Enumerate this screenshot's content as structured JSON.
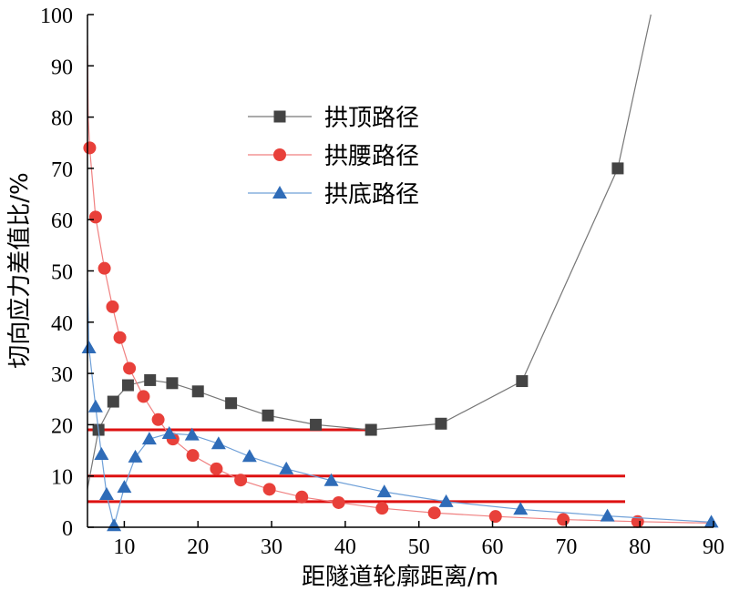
{
  "chart_data": {
    "type": "line",
    "xlabel": "距隧道轮廓距离/m",
    "ylabel": "切向应力差值比/%",
    "xlim": [
      5,
      90
    ],
    "ylim": [
      0,
      100
    ],
    "xticks": [
      10,
      20,
      30,
      40,
      50,
      60,
      70,
      80,
      90
    ],
    "yticks": [
      0,
      10,
      20,
      30,
      40,
      50,
      60,
      70,
      80,
      90,
      100
    ],
    "grid": false,
    "legend_position": "top-center",
    "series": [
      {
        "name": "拱顶路径",
        "color": "#777777",
        "marker": "square",
        "marker_color": "#444444",
        "x": [
          5,
          6.5,
          8.5,
          10.5,
          13.5,
          16.5,
          20,
          24.5,
          29.5,
          36,
          43.5,
          53,
          64,
          77,
          81.5
        ],
        "y": [
          7.5,
          19,
          24.5,
          27.7,
          28.7,
          28.1,
          26.5,
          24.2,
          21.8,
          20,
          19,
          20.2,
          28.5,
          70,
          100
        ],
        "marker_start": 1,
        "marker_end": 13
      },
      {
        "name": "拱腰路径",
        "color": "#f08080",
        "marker": "circle",
        "marker_color": "#e8403a",
        "x": [
          5,
          5.1,
          5.3,
          6.1,
          7.3,
          8.4,
          9.4,
          10.7,
          12.6,
          14.6,
          16.6,
          19.3,
          22.5,
          25.8,
          29.7,
          34.1,
          39.1,
          45,
          52.1,
          60.4,
          69.6,
          79.7,
          90
        ],
        "y": [
          94,
          80,
          74,
          60.5,
          50.5,
          43,
          37,
          31,
          25.5,
          21,
          17.2,
          14,
          11.4,
          9.2,
          7.4,
          5.9,
          4.8,
          3.7,
          2.8,
          2.1,
          1.5,
          1.1,
          0.8
        ],
        "marker_start": 2,
        "marker_end": 21
      },
      {
        "name": "拱底路径",
        "color": "#6fa0d8",
        "marker": "triangle",
        "marker_color": "#2f6cb8",
        "x": [
          5,
          5.2,
          6.1,
          6.9,
          7.6,
          8.6,
          10,
          11.5,
          13.4,
          16.1,
          19.2,
          22.8,
          27,
          32,
          38.1,
          45.3,
          53.7,
          63.8,
          75.6,
          89.7
        ],
        "y": [
          48,
          35,
          23.5,
          14.2,
          6.4,
          0.3,
          7.8,
          13.7,
          17.2,
          18.3,
          18,
          16.3,
          13.8,
          11.4,
          9.1,
          6.9,
          5,
          3.5,
          2.2,
          1
        ],
        "marker_start": 1,
        "marker_end": 19
      }
    ],
    "reference_lines": [
      {
        "y": 19,
        "x_start": 5,
        "x_end": 43.5,
        "color": "#dd1111"
      },
      {
        "y": 10,
        "x_start": 5,
        "x_end": 78,
        "color": "#dd1111"
      },
      {
        "y": 5,
        "x_start": 5,
        "x_end": 78,
        "color": "#dd1111"
      }
    ]
  }
}
